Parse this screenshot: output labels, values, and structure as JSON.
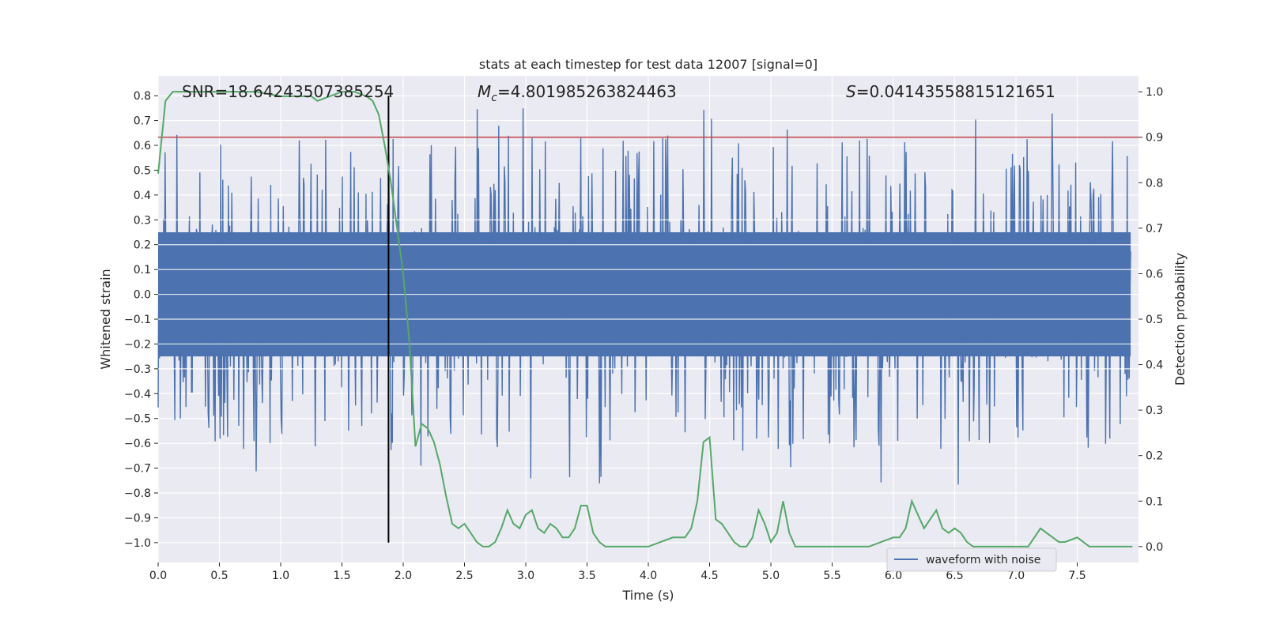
{
  "chart_data": {
    "type": "line",
    "title": "stats at each timestep for test data 12007 [signal=0]",
    "xlabel": "Time (s)",
    "ylabel": "Whitened strain",
    "y2label": "Detection probability",
    "xlim": [
      0.0,
      8.0
    ],
    "ylim": [
      -1.08,
      0.88
    ],
    "y2lim": [
      -0.035,
      1.035
    ],
    "x_ticks": [
      0.0,
      0.5,
      1.0,
      1.5,
      2.0,
      2.5,
      3.0,
      3.5,
      4.0,
      4.5,
      5.0,
      5.5,
      6.0,
      6.5,
      7.0,
      7.5
    ],
    "x_tick_labels": [
      "0.0",
      "0.5",
      "1.0",
      "1.5",
      "2.0",
      "2.5",
      "3.0",
      "3.5",
      "4.0",
      "4.5",
      "5.0",
      "5.5",
      "6.0",
      "6.5",
      "7.0",
      "7.5"
    ],
    "y_ticks": [
      0.8,
      0.7,
      0.6,
      0.5,
      0.4,
      0.3,
      0.2,
      0.1,
      0.0,
      -0.1,
      -0.2,
      -0.3,
      -0.4,
      -0.5,
      -0.6,
      -0.7,
      -0.8,
      -0.9,
      -1.0
    ],
    "y_tick_labels": [
      "0.8",
      "0.7",
      "0.6",
      "0.5",
      "0.4",
      "0.3",
      "0.2",
      "0.1",
      "0.0",
      "−0.1",
      "−0.2",
      "−0.3",
      "−0.4",
      "−0.5",
      "−0.6",
      "−0.7",
      "−0.8",
      "−0.9",
      "−1.0"
    ],
    "y2_ticks": [
      1.0,
      0.9,
      0.8,
      0.7,
      0.6,
      0.5,
      0.4,
      0.3,
      0.2,
      0.1,
      0.0
    ],
    "y2_tick_labels": [
      "1.0",
      "0.9",
      "0.8",
      "0.7",
      "0.6",
      "0.5",
      "0.4",
      "0.3",
      "0.2",
      "0.1",
      "0.0"
    ],
    "grid": true,
    "legend": {
      "placement": "lower-right",
      "entries": [
        "waveform with noise"
      ]
    },
    "annotations": {
      "snr": "SNR=18.64243507385254",
      "mc_symbol": "M",
      "mc_subscript": "c",
      "mc_value": "=4.801985263824463",
      "s_symbol": "S",
      "s_value": "=0.04143558815121651"
    },
    "series": [
      {
        "name": "waveform with noise",
        "axis": "left",
        "style": "dense-noise",
        "color": "#4c72b0",
        "body_range": [
          -0.25,
          0.25
        ],
        "typical_peak": 0.5,
        "max_peak": 0.8,
        "min_peak": -1.0
      },
      {
        "axis": "right",
        "color": "#55a868",
        "x": [
          0.0,
          0.06,
          0.12,
          0.25,
          0.4,
          0.6,
          0.8,
          1.0,
          1.1,
          1.25,
          1.3,
          1.4,
          1.5,
          1.6,
          1.7,
          1.75,
          1.8,
          1.85,
          1.9,
          2.0,
          2.05,
          2.1,
          2.15,
          2.2,
          2.25,
          2.3,
          2.35,
          2.4,
          2.45,
          2.5,
          2.55,
          2.6,
          2.65,
          2.7,
          2.75,
          2.8,
          2.85,
          2.9,
          2.95,
          3.0,
          3.05,
          3.1,
          3.15,
          3.2,
          3.25,
          3.3,
          3.35,
          3.4,
          3.45,
          3.5,
          3.55,
          3.6,
          3.65,
          3.7,
          3.75,
          3.8,
          3.85,
          3.9,
          4.0,
          4.1,
          4.2,
          4.3,
          4.35,
          4.4,
          4.45,
          4.5,
          4.55,
          4.6,
          4.65,
          4.7,
          4.75,
          4.8,
          4.85,
          4.9,
          4.95,
          5.0,
          5.05,
          5.1,
          5.15,
          5.2,
          5.25,
          5.3,
          5.35,
          5.4,
          5.45,
          5.5,
          5.6,
          5.7,
          5.8,
          5.9,
          6.0,
          6.05,
          6.1,
          6.15,
          6.2,
          6.25,
          6.3,
          6.35,
          6.4,
          6.45,
          6.5,
          6.55,
          6.6,
          6.65,
          6.7,
          6.75,
          6.8,
          6.85,
          6.9,
          6.95,
          7.0,
          7.1,
          7.2,
          7.3,
          7.35,
          7.4,
          7.5,
          7.6,
          7.65,
          7.7,
          7.8,
          7.95
        ],
        "y": [
          0.82,
          0.98,
          1.0,
          1.0,
          1.0,
          1.0,
          1.0,
          0.99,
          0.99,
          0.99,
          0.98,
          0.99,
          1.0,
          1.0,
          0.99,
          0.98,
          0.95,
          0.88,
          0.8,
          0.6,
          0.45,
          0.22,
          0.27,
          0.26,
          0.23,
          0.18,
          0.11,
          0.05,
          0.04,
          0.05,
          0.03,
          0.01,
          0.0,
          0.0,
          0.01,
          0.04,
          0.08,
          0.05,
          0.04,
          0.07,
          0.08,
          0.04,
          0.03,
          0.05,
          0.04,
          0.02,
          0.02,
          0.04,
          0.09,
          0.09,
          0.03,
          0.01,
          0.0,
          0.0,
          0.0,
          0.0,
          0.0,
          0.0,
          0.0,
          0.01,
          0.02,
          0.02,
          0.04,
          0.1,
          0.23,
          0.24,
          0.06,
          0.05,
          0.03,
          0.01,
          0.0,
          0.0,
          0.02,
          0.08,
          0.05,
          0.01,
          0.03,
          0.1,
          0.03,
          0.0,
          0.0,
          0.0,
          0.0,
          0.0,
          0.0,
          0.0,
          0.0,
          0.0,
          0.0,
          0.01,
          0.02,
          0.02,
          0.04,
          0.1,
          0.07,
          0.04,
          0.06,
          0.08,
          0.04,
          0.03,
          0.04,
          0.03,
          0.01,
          0.0,
          0.0,
          0.0,
          0.0,
          0.0,
          0.0,
          0.0,
          0.0,
          0.0,
          0.04,
          0.02,
          0.01,
          0.01,
          0.02,
          0.0,
          0.0,
          0.0,
          0.0,
          0.0
        ]
      }
    ],
    "reference_lines": [
      {
        "orientation": "horizontal",
        "axis": "right",
        "value": 0.9,
        "color": "#c44e52"
      },
      {
        "orientation": "vertical",
        "x": 1.88,
        "from_y": -1.0,
        "to_y": 0.8,
        "color": "#000000"
      }
    ]
  }
}
